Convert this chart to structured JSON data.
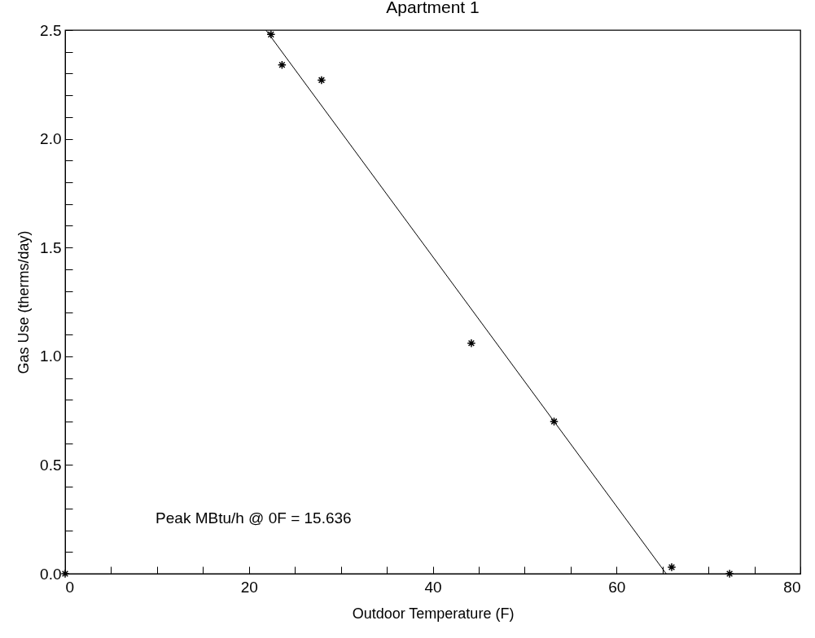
{
  "chart_data": {
    "type": "scatter",
    "title": "Apartment 1",
    "xlabel": "Outdoor Temperature (F)",
    "ylabel": "Gas Use (therms/day)",
    "marker": "cross",
    "xlim": [
      0,
      80
    ],
    "ylim": [
      0,
      2.5
    ],
    "xticks": [
      0,
      {
        "value": 5,
        "label": null
      },
      {
        "value": 10,
        "label": null
      },
      {
        "value": 15,
        "label": null
      },
      20,
      {
        "value": 25,
        "label": null
      },
      {
        "value": 30,
        "label": null
      },
      {
        "value": 35,
        "label": null
      },
      40,
      {
        "value": 45,
        "label": null
      },
      {
        "value": 50,
        "label": null
      },
      {
        "value": 55,
        "label": null
      },
      60,
      {
        "value": 65,
        "label": null
      },
      {
        "value": 70,
        "label": null
      },
      {
        "value": 75,
        "label": null
      },
      80
    ],
    "yticks": [
      {
        "value": 0,
        "label": "0.0"
      },
      {
        "value": 0.1,
        "label": null
      },
      {
        "value": 0.2,
        "label": null
      },
      {
        "value": 0.3,
        "label": null
      },
      {
        "value": 0.4,
        "label": null
      },
      {
        "value": 0.5,
        "label": "0.5"
      },
      {
        "value": 0.6,
        "label": null
      },
      {
        "value": 0.7,
        "label": null
      },
      {
        "value": 0.8,
        "label": null
      },
      {
        "value": 0.9,
        "label": null
      },
      {
        "value": 1,
        "label": "1.0"
      },
      {
        "value": 1.1,
        "label": null
      },
      {
        "value": 1.2,
        "label": null
      },
      {
        "value": 1.3,
        "label": null
      },
      {
        "value": 1.4,
        "label": null
      },
      {
        "value": 1.5,
        "label": "1.5"
      },
      {
        "value": 1.6,
        "label": null
      },
      {
        "value": 1.7,
        "label": null
      },
      {
        "value": 1.8,
        "label": null
      },
      {
        "value": 1.9,
        "label": null
      },
      {
        "value": 2,
        "label": "2.0"
      },
      {
        "value": 2.1,
        "label": null
      },
      {
        "value": 2.2,
        "label": null
      },
      {
        "value": 2.3,
        "label": null
      },
      {
        "value": 2.4,
        "label": null
      },
      {
        "value": 2.5,
        "label": "2.5"
      }
    ],
    "annotations": [
      "Peak MBtu/h @ 0F =   15.636"
    ],
    "series": [
      {
        "type": "scatter",
        "color": "#000000",
        "x": [
          0,
          22.4,
          23.6,
          27.9,
          44.2,
          53.2,
          66.0,
          72.3
        ],
        "values": [
          0,
          2.48,
          2.34,
          2.27,
          1.06,
          0.7,
          0.03,
          0.0
        ]
      },
      {
        "type": "line",
        "color": "#000000",
        "marker": "none",
        "x": [
          21.85,
          65.4
        ],
        "values": [
          2.5,
          0
        ]
      }
    ]
  }
}
